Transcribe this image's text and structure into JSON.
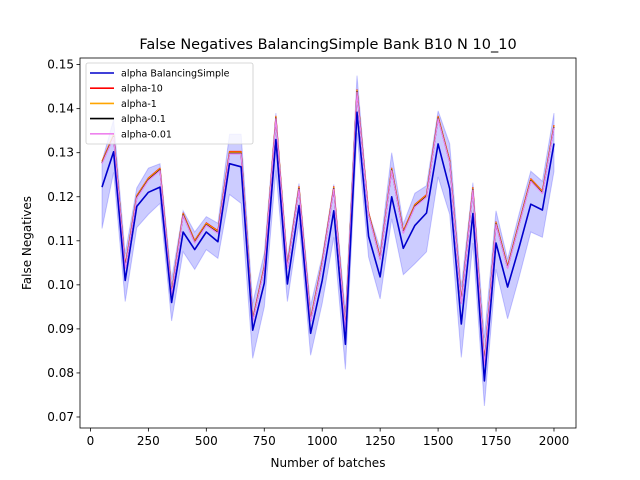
{
  "chart_data": {
    "type": "line",
    "title": "False Negatives BalancingSimple Bank B10 N 10_10",
    "xlabel": "Number of batches",
    "ylabel": "False Negatives",
    "xlim": [
      -45,
      2095
    ],
    "ylim": [
      0.0675,
      0.1515
    ],
    "xticks": [
      0,
      250,
      500,
      750,
      1000,
      1250,
      1500,
      1750,
      2000
    ],
    "xtick_labels": [
      "0",
      "250",
      "500",
      "750",
      "1000",
      "1250",
      "1500",
      "1750",
      "2000"
    ],
    "yticks": [
      0.07,
      0.08,
      0.09,
      0.1,
      0.11,
      0.12,
      0.13,
      0.14,
      0.15
    ],
    "ytick_labels": [
      "0.07",
      "0.08",
      "0.09",
      "0.10",
      "0.11",
      "0.12",
      "0.13",
      "0.14",
      "0.15"
    ],
    "legend_position": "upper-left",
    "x": [
      50,
      100,
      150,
      200,
      250,
      300,
      350,
      400,
      450,
      500,
      550,
      600,
      650,
      700,
      750,
      800,
      850,
      900,
      950,
      1000,
      1050,
      1100,
      1150,
      1200,
      1250,
      1300,
      1350,
      1400,
      1450,
      1500,
      1550,
      1600,
      1650,
      1700,
      1750,
      1800,
      1850,
      1900,
      1950,
      2000
    ],
    "series": [
      {
        "name": "alpha BalancingSimple",
        "color": "#0000cc",
        "values": [
          0.1222,
          0.1302,
          0.101,
          0.1178,
          0.121,
          0.1222,
          0.096,
          0.112,
          0.108,
          0.112,
          0.1098,
          0.1275,
          0.1268,
          0.0897,
          0.1004,
          0.133,
          0.1002,
          0.118,
          0.089,
          0.101,
          0.1168,
          0.0865,
          0.1392,
          0.111,
          0.1018,
          0.12,
          0.1083,
          0.1135,
          0.1163,
          0.132,
          0.1218,
          0.0911,
          0.1162,
          0.0782,
          0.1095,
          0.0995,
          0.1086,
          0.1183,
          0.117,
          0.1321
        ],
        "band_lower": [
          0.1128,
          0.1255,
          0.0962,
          0.113,
          0.116,
          0.1185,
          0.0918,
          0.1075,
          0.1035,
          0.108,
          0.106,
          0.1205,
          0.1185,
          0.0833,
          0.095,
          0.126,
          0.0962,
          0.114,
          0.084,
          0.0958,
          0.1108,
          0.0808,
          0.1345,
          0.1063,
          0.0968,
          0.115,
          0.1023,
          0.1048,
          0.1075,
          0.1245,
          0.116,
          0.0835,
          0.1095,
          0.0725,
          0.1035,
          0.0923,
          0.1018,
          0.112,
          0.1108,
          0.1258
        ],
        "band_upper": [
          0.128,
          0.1375,
          0.107,
          0.122,
          0.1265,
          0.1275,
          0.1012,
          0.1168,
          0.112,
          0.1155,
          0.114,
          0.1342,
          0.1342,
          0.0958,
          0.1072,
          0.139,
          0.106,
          0.123,
          0.0953,
          0.1065,
          0.1228,
          0.0938,
          0.1475,
          0.1165,
          0.1082,
          0.13,
          0.1138,
          0.1208,
          0.1225,
          0.1395,
          0.132,
          0.0995,
          0.1232,
          0.088,
          0.1168,
          0.1058,
          0.1162,
          0.1258,
          0.1235,
          0.139
        ]
      },
      {
        "name": "alpha-10",
        "color": "#ff0000",
        "values": [
          0.1278,
          0.1338,
          0.104,
          0.12,
          0.124,
          0.1262,
          0.098,
          0.116,
          0.1098,
          0.1138,
          0.112,
          0.13,
          0.13,
          0.092,
          0.104,
          0.138,
          0.104,
          0.122,
          0.092,
          0.105,
          0.122,
          0.09,
          0.144,
          0.1162,
          0.106,
          0.1262,
          0.112,
          0.118,
          0.1202,
          0.138,
          0.128,
          0.096,
          0.1218,
          0.082,
          0.114,
          0.104,
          0.114,
          0.1238,
          0.121,
          0.136
        ]
      },
      {
        "name": "alpha-1",
        "color": "#ffa500",
        "values": [
          0.1278,
          0.1338,
          0.104,
          0.12,
          0.124,
          0.1262,
          0.098,
          0.116,
          0.1098,
          0.1138,
          0.112,
          0.13,
          0.13,
          0.092,
          0.104,
          0.138,
          0.104,
          0.122,
          0.092,
          0.105,
          0.122,
          0.09,
          0.144,
          0.1162,
          0.106,
          0.1262,
          0.112,
          0.118,
          0.1202,
          0.138,
          0.128,
          0.096,
          0.1218,
          0.082,
          0.114,
          0.104,
          0.114,
          0.1238,
          0.121,
          0.136
        ]
      },
      {
        "name": "alpha-0.1",
        "color": "#000000",
        "values": [
          0.1278,
          0.1338,
          0.104,
          0.12,
          0.124,
          0.1262,
          0.098,
          0.116,
          0.1098,
          0.1138,
          0.112,
          0.13,
          0.13,
          0.092,
          0.104,
          0.138,
          0.104,
          0.122,
          0.092,
          0.105,
          0.122,
          0.09,
          0.144,
          0.1162,
          0.106,
          0.1262,
          0.112,
          0.118,
          0.1202,
          0.138,
          0.128,
          0.096,
          0.1218,
          0.082,
          0.114,
          0.104,
          0.114,
          0.1238,
          0.121,
          0.136
        ]
      },
      {
        "name": "alpha-0.01",
        "color": "#ee82ee",
        "values": [
          0.1278,
          0.1338,
          0.104,
          0.12,
          0.124,
          0.1262,
          0.098,
          0.116,
          0.1098,
          0.1138,
          0.112,
          0.13,
          0.13,
          0.092,
          0.104,
          0.138,
          0.104,
          0.122,
          0.092,
          0.105,
          0.122,
          0.09,
          0.144,
          0.1162,
          0.106,
          0.1262,
          0.112,
          0.118,
          0.1202,
          0.138,
          0.128,
          0.096,
          0.1218,
          0.082,
          0.114,
          0.104,
          0.114,
          0.1238,
          0.121,
          0.136
        ]
      }
    ]
  }
}
